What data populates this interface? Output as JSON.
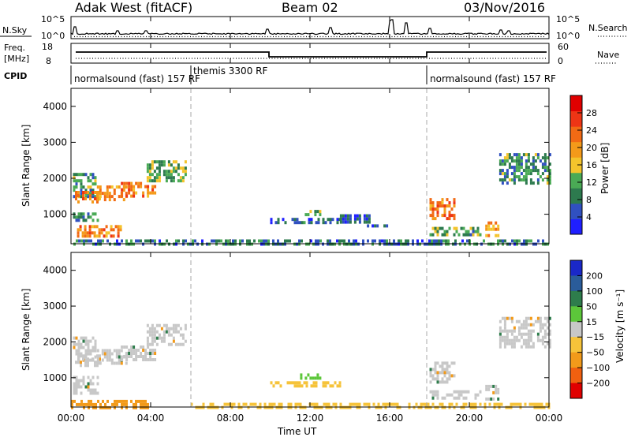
{
  "header": {
    "station": "Adak West (fitACF)",
    "beam": "Beam 02",
    "date": "03/Nov/2016"
  },
  "top_panels": {
    "nsky": {
      "left_label": "N.Sky",
      "right_label": "N.Search",
      "ticks": [
        "10^5",
        "10^0"
      ],
      "right_ticks": [
        "10^5",
        "10^0"
      ]
    },
    "freq": {
      "left_label_line1": "Freq.",
      "left_label_line2": "[MHz]",
      "left_ticks": [
        "18",
        "8"
      ],
      "right_label": "Nave",
      "right_ticks": [
        "60",
        "0"
      ]
    },
    "cpid": {
      "label": "CPID",
      "segments": [
        {
          "label": "normalsound (fast) 157 RF",
          "start_hour": 0,
          "end_hour": 6
        },
        {
          "label": "themis 3300 RF",
          "start_hour": 6,
          "end_hour": 18
        },
        {
          "label": "normalsound (fast) 157 RF",
          "start_hour": 18,
          "end_hour": 24
        }
      ]
    }
  },
  "axes": {
    "x_label": "Time UT",
    "x_ticks": [
      "00:00",
      "04:00",
      "08:00",
      "12:00",
      "16:00",
      "20:00",
      "00:00"
    ],
    "y_label": "Slant Range [km]",
    "y_ticks": [
      "1000",
      "2000",
      "3000",
      "4000"
    ]
  },
  "colorbars": {
    "power": {
      "label": "Power [dB]",
      "ticks": [
        "4",
        "8",
        "12",
        "16",
        "20",
        "24",
        "28"
      ],
      "colors": [
        "#1f1fff",
        "#3050c0",
        "#2d7a4e",
        "#4aaa55",
        "#f4c42c",
        "#f49a1a",
        "#f26a14",
        "#ee3515",
        "#e00000"
      ]
    },
    "velocity": {
      "label": "Velocity [m s⁻¹]",
      "ticks": [
        "200",
        "100",
        "50",
        "15",
        "−15",
        "−50",
        "−100",
        "−200"
      ],
      "colors": [
        "#1a28c8",
        "#2a5c9a",
        "#2e7d4c",
        "#5cc63a",
        "#c8c8c8",
        "#f6c33a",
        "#f29a1a",
        "#f06010",
        "#e00000"
      ]
    }
  },
  "chart_data": [
    {
      "type": "heatmap",
      "title": "Power",
      "xlabel": "Time UT",
      "ylabel": "Slant Range [km]",
      "xlim_hours": [
        0,
        24
      ],
      "ylim_km": [
        180,
        4500
      ],
      "colorbar": "Power [dB]",
      "colorbar_range": [
        0,
        32
      ],
      "features": [
        {
          "t0": 0.1,
          "t1": 1.2,
          "r0": 1450,
          "r1": 2150,
          "level": 10
        },
        {
          "t0": 0.2,
          "t1": 1.5,
          "r0": 1300,
          "r1": 1650,
          "level": 22
        },
        {
          "t0": 1.3,
          "t1": 2.8,
          "r0": 1400,
          "r1": 1800,
          "level": 20
        },
        {
          "t0": 2.5,
          "t1": 4.2,
          "r0": 1500,
          "r1": 1900,
          "level": 22
        },
        {
          "t0": 3.8,
          "t1": 5.8,
          "r0": 1900,
          "r1": 2500,
          "level": 12
        },
        {
          "t0": 0.1,
          "t1": 1.4,
          "r0": 850,
          "r1": 1050,
          "level": 8
        },
        {
          "t0": 0.3,
          "t1": 2.5,
          "r0": 350,
          "r1": 700,
          "level": 22
        },
        {
          "t0": 10.0,
          "t1": 13.5,
          "r0": 780,
          "r1": 900,
          "level": 6
        },
        {
          "t0": 11.5,
          "t1": 12.5,
          "r0": 1020,
          "r1": 1120,
          "level": 14
        },
        {
          "t0": 13.5,
          "t1": 15.0,
          "r0": 820,
          "r1": 1000,
          "level": 6
        },
        {
          "t0": 14.5,
          "t1": 16.0,
          "r0": 640,
          "r1": 720,
          "level": 6
        },
        {
          "t0": 18.0,
          "t1": 19.3,
          "r0": 900,
          "r1": 1450,
          "level": 22
        },
        {
          "t0": 18.0,
          "t1": 20.5,
          "r0": 450,
          "r1": 650,
          "level": 12
        },
        {
          "t0": 20.8,
          "t1": 21.4,
          "r0": 400,
          "r1": 800,
          "level": 20
        },
        {
          "t0": 21.5,
          "t1": 24.0,
          "r0": 1900,
          "r1": 2700,
          "level": 10
        },
        {
          "t0": 0.0,
          "t1": 24.0,
          "r0": 190,
          "r1": 300,
          "level": 8
        }
      ]
    },
    {
      "type": "heatmap",
      "title": "Velocity",
      "xlabel": "Time UT",
      "ylabel": "Slant Range [km]",
      "xlim_hours": [
        0,
        24
      ],
      "ylim_km": [
        180,
        4500
      ],
      "colorbar": "Velocity [m s⁻¹]",
      "colorbar_range": [
        -200,
        200
      ],
      "features": [
        {
          "t0": 0.1,
          "t1": 1.2,
          "r0": 1450,
          "r1": 2150,
          "level": 0
        },
        {
          "t0": 0.2,
          "t1": 1.5,
          "r0": 1300,
          "r1": 1650,
          "level": 0
        },
        {
          "t0": 1.3,
          "t1": 2.8,
          "r0": 1400,
          "r1": 1800,
          "level": 0
        },
        {
          "t0": 2.5,
          "t1": 4.2,
          "r0": 1500,
          "r1": 1900,
          "level": 0
        },
        {
          "t0": 3.8,
          "t1": 5.8,
          "r0": 1900,
          "r1": 2500,
          "level": 0
        },
        {
          "t0": 0.1,
          "t1": 1.4,
          "r0": 600,
          "r1": 1050,
          "level": 0
        },
        {
          "t0": 0.0,
          "t1": 4.0,
          "r0": 190,
          "r1": 380,
          "level": -60
        },
        {
          "t0": 10.0,
          "t1": 13.5,
          "r0": 780,
          "r1": 900,
          "level": -40
        },
        {
          "t0": 11.5,
          "t1": 12.5,
          "r0": 1020,
          "r1": 1120,
          "level": 40
        },
        {
          "t0": 18.0,
          "t1": 19.3,
          "r0": 900,
          "r1": 1450,
          "level": 0
        },
        {
          "t0": 18.0,
          "t1": 20.5,
          "r0": 450,
          "r1": 650,
          "level": 0
        },
        {
          "t0": 20.8,
          "t1": 21.4,
          "r0": 400,
          "r1": 800,
          "level": 0
        },
        {
          "t0": 21.5,
          "t1": 24.0,
          "r0": 1900,
          "r1": 2700,
          "level": 0
        },
        {
          "t0": 6.0,
          "t1": 24.0,
          "r0": 190,
          "r1": 300,
          "level": -40
        }
      ]
    }
  ]
}
